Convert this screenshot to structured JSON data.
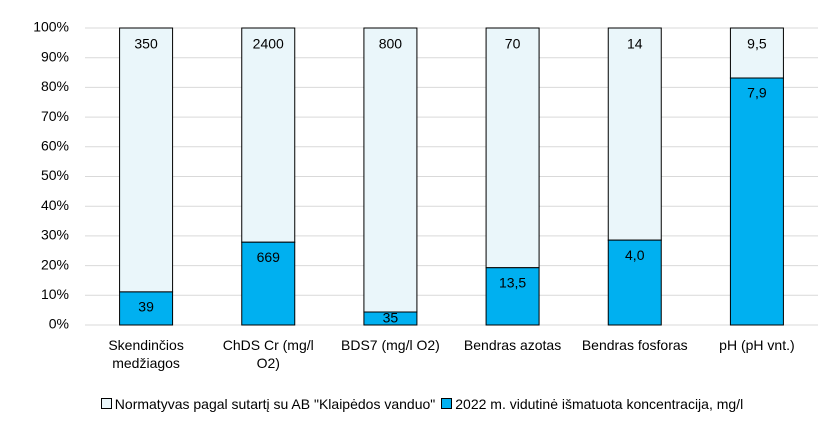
{
  "chart_data": {
    "type": "bar",
    "categories": [
      "Skendinčios medžiagos",
      "ChDS Cr (mg/l O2)",
      "BDS7 (mg/l O2)",
      "Bendras azotas",
      "Bendras fosforas",
      "pH (pH vnt.)"
    ],
    "series": [
      {
        "name": "Normatyvas pagal sutartį su AB \"Klaipėdos vanduo\"",
        "color": "#eaf6fa",
        "values": [
          350,
          2400,
          800,
          70,
          14,
          9.5
        ],
        "value_labels": [
          "350",
          "2400",
          "800",
          "70",
          "14",
          "9,5"
        ]
      },
      {
        "name": "2022 m. vidutinė išmatuota koncentracija, mg/l",
        "color": "#00b0f0",
        "values": [
          39,
          669,
          35,
          13.5,
          4.0,
          7.9
        ],
        "value_labels": [
          "39",
          "669",
          "35",
          "13,5",
          "4,0",
          "7,9"
        ]
      }
    ],
    "ylim": [
      0,
      100
    ],
    "yticks": [
      {
        "value": 0,
        "label": "0%"
      },
      {
        "value": 10,
        "label": "10%"
      },
      {
        "value": 20,
        "label": "20%"
      },
      {
        "value": 30,
        "label": "30%"
      },
      {
        "value": 40,
        "label": "40%"
      },
      {
        "value": 50,
        "label": "50%"
      },
      {
        "value": 60,
        "label": "60%"
      },
      {
        "value": 70,
        "label": "70%"
      },
      {
        "value": 80,
        "label": "80%"
      },
      {
        "value": 90,
        "label": "90%"
      },
      {
        "value": 100,
        "label": "100%"
      }
    ],
    "grid": true,
    "legend": "bottom"
  }
}
